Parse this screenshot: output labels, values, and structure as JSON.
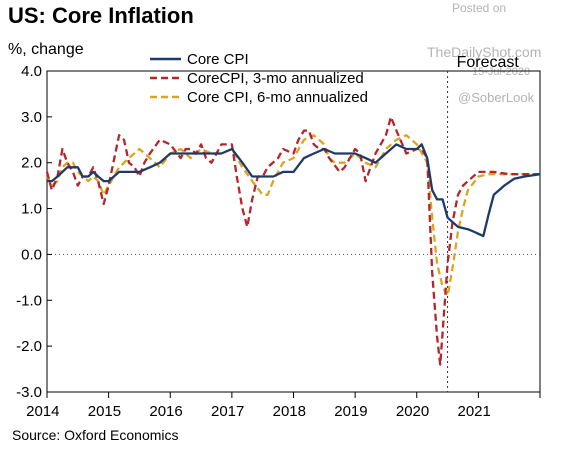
{
  "header": {
    "title": "US: Core Inflation",
    "ylabel": "%, change"
  },
  "footer": {
    "source": "Source: Oxford Economics"
  },
  "watermark": {
    "posted_on": "Posted on",
    "site": "TheDailyShot.com",
    "date": "15-Jul-2020",
    "handle": "@SoberLook"
  },
  "chart_data": {
    "type": "line",
    "title": "US: Core Inflation",
    "ylabel": "%, change",
    "xlabel": "",
    "xlim": [
      2014.0,
      2022.0
    ],
    "ylim": [
      -3.0,
      4.0
    ],
    "x_ticks": [
      2014,
      2015,
      2016,
      2017,
      2018,
      2019,
      2020,
      2021
    ],
    "y_ticks": [
      {
        "value": 4.0,
        "label": "4.0"
      },
      {
        "value": 3.0,
        "label": "3.0"
      },
      {
        "value": 2.0,
        "label": "2.0"
      },
      {
        "value": 1.0,
        "label": "1.0"
      },
      {
        "value": 0.0,
        "label": "0.0"
      },
      {
        "value": -1.0,
        "label": "-1.0"
      },
      {
        "value": -2.0,
        "label": "-2.0"
      },
      {
        "value": -3.0,
        "label": "-3.0"
      }
    ],
    "zero_line": true,
    "forecast_start": 2020.5,
    "forecast_label": "Forecast",
    "legend_position": "top-center",
    "series": [
      {
        "name": "Core CPI",
        "color": "#1f3a68",
        "style": "solid",
        "points": [
          [
            2014.0,
            1.6
          ],
          [
            2014.08,
            1.6
          ],
          [
            2014.17,
            1.7
          ],
          [
            2014.25,
            1.8
          ],
          [
            2014.33,
            1.9
          ],
          [
            2014.42,
            1.9
          ],
          [
            2014.5,
            1.9
          ],
          [
            2014.58,
            1.7
          ],
          [
            2014.67,
            1.7
          ],
          [
            2014.75,
            1.8
          ],
          [
            2014.83,
            1.7
          ],
          [
            2014.92,
            1.6
          ],
          [
            2015.0,
            1.6
          ],
          [
            2015.17,
            1.8
          ],
          [
            2015.33,
            1.8
          ],
          [
            2015.5,
            1.8
          ],
          [
            2015.67,
            1.9
          ],
          [
            2015.83,
            2.0
          ],
          [
            2016.0,
            2.2
          ],
          [
            2016.17,
            2.2
          ],
          [
            2016.33,
            2.2
          ],
          [
            2016.5,
            2.2
          ],
          [
            2016.67,
            2.2
          ],
          [
            2016.83,
            2.2
          ],
          [
            2017.0,
            2.3
          ],
          [
            2017.17,
            2.0
          ],
          [
            2017.33,
            1.7
          ],
          [
            2017.5,
            1.7
          ],
          [
            2017.67,
            1.7
          ],
          [
            2017.83,
            1.8
          ],
          [
            2018.0,
            1.8
          ],
          [
            2018.17,
            2.1
          ],
          [
            2018.33,
            2.2
          ],
          [
            2018.5,
            2.3
          ],
          [
            2018.67,
            2.2
          ],
          [
            2018.83,
            2.2
          ],
          [
            2019.0,
            2.2
          ],
          [
            2019.17,
            2.1
          ],
          [
            2019.33,
            2.0
          ],
          [
            2019.5,
            2.2
          ],
          [
            2019.67,
            2.4
          ],
          [
            2019.83,
            2.3
          ],
          [
            2020.0,
            2.3
          ],
          [
            2020.08,
            2.4
          ],
          [
            2020.17,
            2.1
          ],
          [
            2020.25,
            1.4
          ],
          [
            2020.33,
            1.2
          ],
          [
            2020.42,
            1.2
          ],
          [
            2020.5,
            0.8
          ],
          [
            2020.67,
            0.6
          ],
          [
            2020.83,
            0.55
          ],
          [
            2020.92,
            0.5
          ],
          [
            2021.0,
            0.45
          ],
          [
            2021.08,
            0.4
          ],
          [
            2021.17,
            0.9
          ],
          [
            2021.25,
            1.3
          ],
          [
            2021.42,
            1.5
          ],
          [
            2021.58,
            1.65
          ],
          [
            2021.75,
            1.7
          ],
          [
            2022.0,
            1.75
          ]
        ]
      },
      {
        "name": "CoreCPI, 3-mo annualized",
        "color": "#b5252c",
        "style": "dashed",
        "points": [
          [
            2014.0,
            1.8
          ],
          [
            2014.08,
            1.4
          ],
          [
            2014.17,
            1.7
          ],
          [
            2014.25,
            2.3
          ],
          [
            2014.33,
            2.0
          ],
          [
            2014.42,
            1.8
          ],
          [
            2014.5,
            1.5
          ],
          [
            2014.58,
            1.7
          ],
          [
            2014.67,
            1.7
          ],
          [
            2014.75,
            1.9
          ],
          [
            2014.83,
            1.6
          ],
          [
            2014.92,
            1.1
          ],
          [
            2015.0,
            1.5
          ],
          [
            2015.17,
            2.6
          ],
          [
            2015.25,
            2.5
          ],
          [
            2015.33,
            2.0
          ],
          [
            2015.42,
            1.9
          ],
          [
            2015.5,
            1.7
          ],
          [
            2015.58,
            2.0
          ],
          [
            2015.67,
            2.2
          ],
          [
            2015.83,
            2.5
          ],
          [
            2016.0,
            2.4
          ],
          [
            2016.17,
            2.1
          ],
          [
            2016.25,
            2.3
          ],
          [
            2016.33,
            2.3
          ],
          [
            2016.42,
            2.2
          ],
          [
            2016.5,
            2.4
          ],
          [
            2016.58,
            2.1
          ],
          [
            2016.67,
            2.0
          ],
          [
            2016.83,
            2.4
          ],
          [
            2017.0,
            2.4
          ],
          [
            2017.08,
            1.7
          ],
          [
            2017.17,
            1.0
          ],
          [
            2017.25,
            0.6
          ],
          [
            2017.33,
            1.2
          ],
          [
            2017.42,
            1.7
          ],
          [
            2017.5,
            1.7
          ],
          [
            2017.58,
            1.9
          ],
          [
            2017.75,
            2.1
          ],
          [
            2017.83,
            2.3
          ],
          [
            2018.0,
            2.2
          ],
          [
            2018.08,
            2.5
          ],
          [
            2018.17,
            2.7
          ],
          [
            2018.25,
            2.7
          ],
          [
            2018.33,
            2.4
          ],
          [
            2018.42,
            2.3
          ],
          [
            2018.5,
            2.3
          ],
          [
            2018.58,
            2.1
          ],
          [
            2018.75,
            1.8
          ],
          [
            2018.83,
            1.9
          ],
          [
            2019.0,
            2.3
          ],
          [
            2019.08,
            2.2
          ],
          [
            2019.17,
            1.6
          ],
          [
            2019.33,
            2.2
          ],
          [
            2019.5,
            2.6
          ],
          [
            2019.58,
            3.0
          ],
          [
            2019.67,
            2.7
          ],
          [
            2019.83,
            2.2
          ],
          [
            2020.0,
            2.3
          ],
          [
            2020.08,
            2.3
          ],
          [
            2020.17,
            2.1
          ],
          [
            2020.25,
            -0.4
          ],
          [
            2020.33,
            -1.8
          ],
          [
            2020.38,
            -2.4
          ],
          [
            2020.42,
            -1.7
          ],
          [
            2020.5,
            -0.2
          ],
          [
            2020.58,
            0.7
          ],
          [
            2020.67,
            1.3
          ],
          [
            2020.75,
            1.5
          ],
          [
            2020.83,
            1.6
          ],
          [
            2021.0,
            1.8
          ],
          [
            2021.25,
            1.8
          ],
          [
            2021.5,
            1.75
          ],
          [
            2021.75,
            1.75
          ],
          [
            2022.0,
            1.75
          ]
        ]
      },
      {
        "name": "Core CPI, 6-mo annualized",
        "color": "#dca520",
        "style": "dashed",
        "points": [
          [
            2014.0,
            1.7
          ],
          [
            2014.08,
            1.5
          ],
          [
            2014.17,
            1.6
          ],
          [
            2014.25,
            1.9
          ],
          [
            2014.33,
            2.0
          ],
          [
            2014.42,
            2.0
          ],
          [
            2014.5,
            1.8
          ],
          [
            2014.58,
            1.7
          ],
          [
            2014.67,
            1.6
          ],
          [
            2014.75,
            1.7
          ],
          [
            2014.83,
            1.6
          ],
          [
            2014.92,
            1.3
          ],
          [
            2015.0,
            1.5
          ],
          [
            2015.17,
            1.9
          ],
          [
            2015.33,
            2.1
          ],
          [
            2015.5,
            2.3
          ],
          [
            2015.67,
            2.1
          ],
          [
            2015.83,
            1.9
          ],
          [
            2016.0,
            2.2
          ],
          [
            2016.17,
            2.3
          ],
          [
            2016.33,
            2.1
          ],
          [
            2016.5,
            2.3
          ],
          [
            2016.67,
            2.2
          ],
          [
            2016.83,
            2.2
          ],
          [
            2017.0,
            2.3
          ],
          [
            2017.17,
            1.9
          ],
          [
            2017.33,
            1.6
          ],
          [
            2017.5,
            1.3
          ],
          [
            2017.58,
            1.3
          ],
          [
            2017.67,
            1.6
          ],
          [
            2017.83,
            2.0
          ],
          [
            2018.0,
            2.1
          ],
          [
            2018.17,
            2.5
          ],
          [
            2018.33,
            2.6
          ],
          [
            2018.5,
            2.4
          ],
          [
            2018.58,
            2.1
          ],
          [
            2018.67,
            2.0
          ],
          [
            2018.83,
            2.0
          ],
          [
            2019.0,
            2.2
          ],
          [
            2019.17,
            2.0
          ],
          [
            2019.33,
            1.9
          ],
          [
            2019.5,
            2.3
          ],
          [
            2019.67,
            2.5
          ],
          [
            2019.83,
            2.6
          ],
          [
            2020.0,
            2.4
          ],
          [
            2020.17,
            2.0
          ],
          [
            2020.25,
            0.8
          ],
          [
            2020.33,
            -0.2
          ],
          [
            2020.42,
            -0.7
          ],
          [
            2020.5,
            -0.9
          ],
          [
            2020.58,
            -0.3
          ],
          [
            2020.67,
            0.5
          ],
          [
            2020.75,
            1.0
          ],
          [
            2020.83,
            1.4
          ],
          [
            2021.0,
            1.7
          ],
          [
            2021.17,
            1.75
          ],
          [
            2021.42,
            1.75
          ],
          [
            2021.67,
            1.75
          ],
          [
            2022.0,
            1.75
          ]
        ]
      }
    ]
  }
}
